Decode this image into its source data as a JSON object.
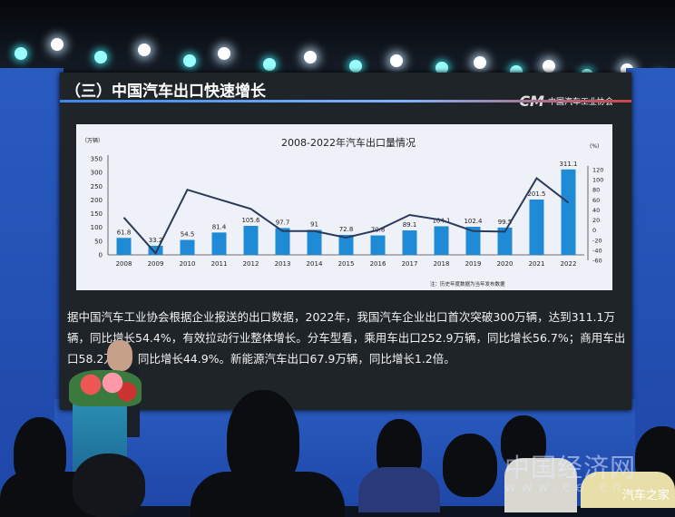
{
  "slide": {
    "title": "（三）中国汽车出口快速增长",
    "logo_text": "中国汽车工业协会",
    "logo_mark": "CM",
    "paragraph": "据中国汽车工业协会根据企业报送的出口数据，2022年，我国汽车企业出口首次突破300万辆，达到311.1万辆，同比增长54.4%，有效拉动行业整体增长。分车型看，乘用车出口252.9万辆，同比增长56.7%；商用车出口58.2万辆，同比增长44.9%。新能源汽车出口67.9万辆，同比增长1.2倍。"
  },
  "chart_data": {
    "type": "bar",
    "title": "2008-2022年汽车出口量情况",
    "left_unit": "（万辆）",
    "right_unit": "(%)",
    "note": "注：历史年度数据为当年发布数据",
    "categories": [
      "2008",
      "2009",
      "2010",
      "2011",
      "2012",
      "2013",
      "2014",
      "2015",
      "2016",
      "2017",
      "2018",
      "2019",
      "2020",
      "2021",
      "2022"
    ],
    "series": [
      {
        "type": "bar",
        "axis": "left",
        "values": [
          61.8,
          33.2,
          54.5,
          81.4,
          105.6,
          97.7,
          91,
          72.8,
          70.8,
          89.1,
          104.1,
          102.4,
          99.5,
          201.5,
          311.1
        ],
        "labels": [
          "61.8",
          "33.2",
          "54.5",
          "81.4",
          "105.6",
          "97.7",
          "91",
          "72.8",
          "70.8",
          "89.1",
          "104.1",
          "102.4",
          "99.5",
          "201.5",
          "311.1"
        ],
        "color": "#1f8ad6"
      },
      {
        "type": "line",
        "axis": "right",
        "values": [
          25,
          -46,
          80,
          61,
          42,
          -2,
          -2,
          -15,
          0,
          30,
          20,
          -2,
          -3,
          103,
          54.4
        ],
        "color": "#2b3a5a"
      }
    ],
    "ylim_left": [
      0,
      350
    ],
    "yticks_left": [
      0,
      50,
      100,
      150,
      200,
      250,
      300,
      350
    ],
    "ylim_right": [
      -60,
      120
    ],
    "yticks_right": [
      -60,
      -40,
      -20,
      0,
      20,
      40,
      60,
      80,
      100,
      120
    ],
    "grid": false,
    "legend": "none"
  },
  "overlay": {
    "watermark": "中国经济网",
    "watermark_url": "www.ce.cn",
    "credit": "汽车之家"
  }
}
